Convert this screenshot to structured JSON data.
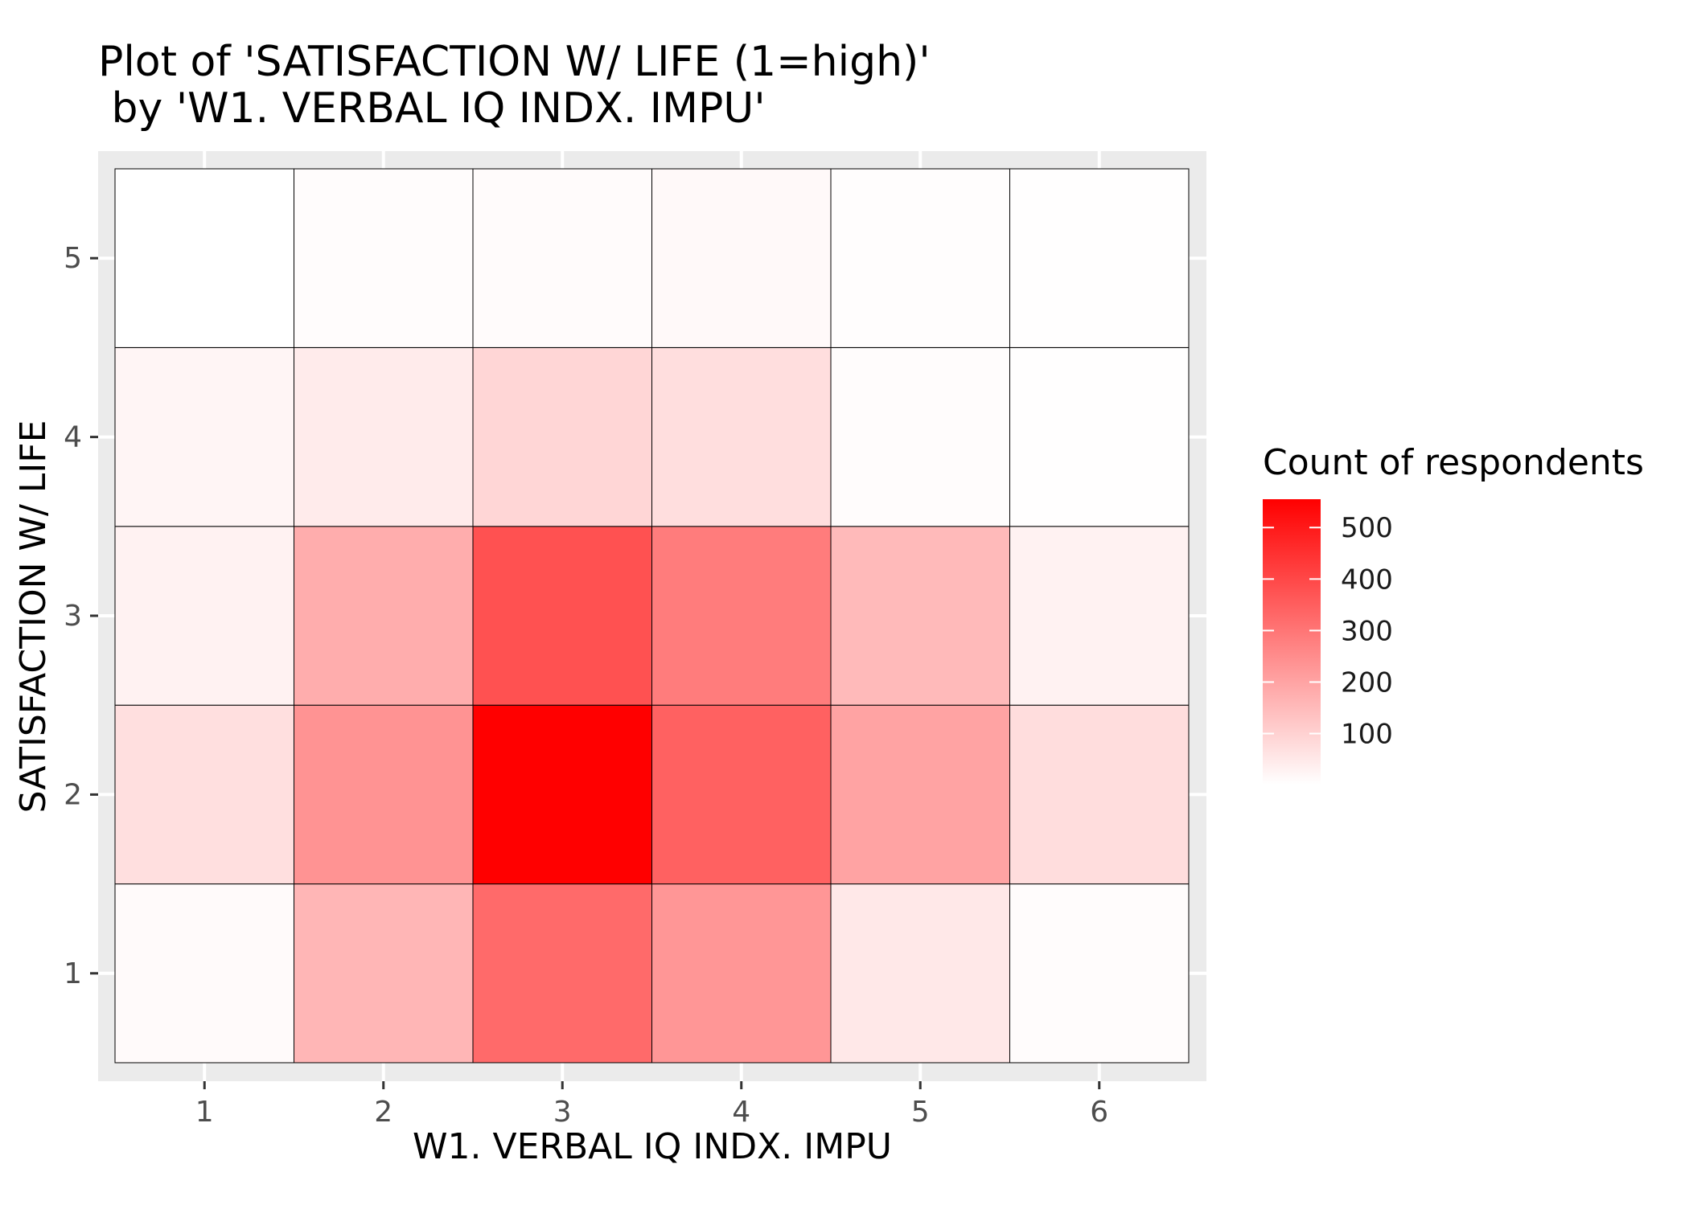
{
  "chart_data": {
    "type": "heatmap",
    "title": [
      "Plot of 'SATISFACTION W/ LIFE (1=high)'",
      " by 'W1. VERBAL IQ INDX. IMPU'"
    ],
    "xlabel": "W1. VERBAL IQ INDX. IMPU",
    "ylabel": "SATISFACTION W/ LIFE",
    "x": [
      1,
      2,
      3,
      4,
      5,
      6
    ],
    "y": [
      1,
      2,
      3,
      4,
      5
    ],
    "xlim": [
      0.5,
      6.5
    ],
    "ylim": [
      0.5,
      5.5
    ],
    "x_ticks": [
      "1",
      "2",
      "3",
      "4",
      "5",
      "6"
    ],
    "y_ticks": [
      "1",
      "2",
      "3",
      "4",
      "5"
    ],
    "values": [
      {
        "x": 1,
        "y": 1,
        "value": 12
      },
      {
        "x": 2,
        "y": 1,
        "value": 160
      },
      {
        "x": 3,
        "y": 1,
        "value": 325
      },
      {
        "x": 4,
        "y": 1,
        "value": 230
      },
      {
        "x": 5,
        "y": 1,
        "value": 50
      },
      {
        "x": 6,
        "y": 1,
        "value": 8
      },
      {
        "x": 1,
        "y": 2,
        "value": 70
      },
      {
        "x": 2,
        "y": 2,
        "value": 235
      },
      {
        "x": 3,
        "y": 2,
        "value": 555
      },
      {
        "x": 4,
        "y": 2,
        "value": 345
      },
      {
        "x": 5,
        "y": 2,
        "value": 200
      },
      {
        "x": 6,
        "y": 2,
        "value": 75
      },
      {
        "x": 1,
        "y": 3,
        "value": 30
      },
      {
        "x": 2,
        "y": 3,
        "value": 180
      },
      {
        "x": 3,
        "y": 3,
        "value": 380
      },
      {
        "x": 4,
        "y": 3,
        "value": 285
      },
      {
        "x": 5,
        "y": 3,
        "value": 150
      },
      {
        "x": 6,
        "y": 3,
        "value": 30
      },
      {
        "x": 1,
        "y": 4,
        "value": 22
      },
      {
        "x": 2,
        "y": 4,
        "value": 45
      },
      {
        "x": 3,
        "y": 4,
        "value": 90
      },
      {
        "x": 4,
        "y": 4,
        "value": 72
      },
      {
        "x": 5,
        "y": 4,
        "value": 8
      },
      {
        "x": 6,
        "y": 4,
        "value": 3
      },
      {
        "x": 1,
        "y": 5,
        "value": 2
      },
      {
        "x": 2,
        "y": 5,
        "value": 8
      },
      {
        "x": 3,
        "y": 5,
        "value": 10
      },
      {
        "x": 4,
        "y": 5,
        "value": 14
      },
      {
        "x": 5,
        "y": 5,
        "value": 5
      },
      {
        "x": 6,
        "y": 5,
        "value": 3
      }
    ],
    "legend": {
      "title": "Count of respondents",
      "position": "right",
      "breaks": [
        100,
        200,
        300,
        400,
        500
      ],
      "labels": [
        "100",
        "200",
        "300",
        "400",
        "500"
      ],
      "range": [
        1,
        555
      ]
    },
    "colors": {
      "low": "#ffffff",
      "high": "#ff0000",
      "panel_background": "#ebebeb",
      "grid": "#ffffff",
      "tile_border": "#000000"
    },
    "grid": true
  }
}
